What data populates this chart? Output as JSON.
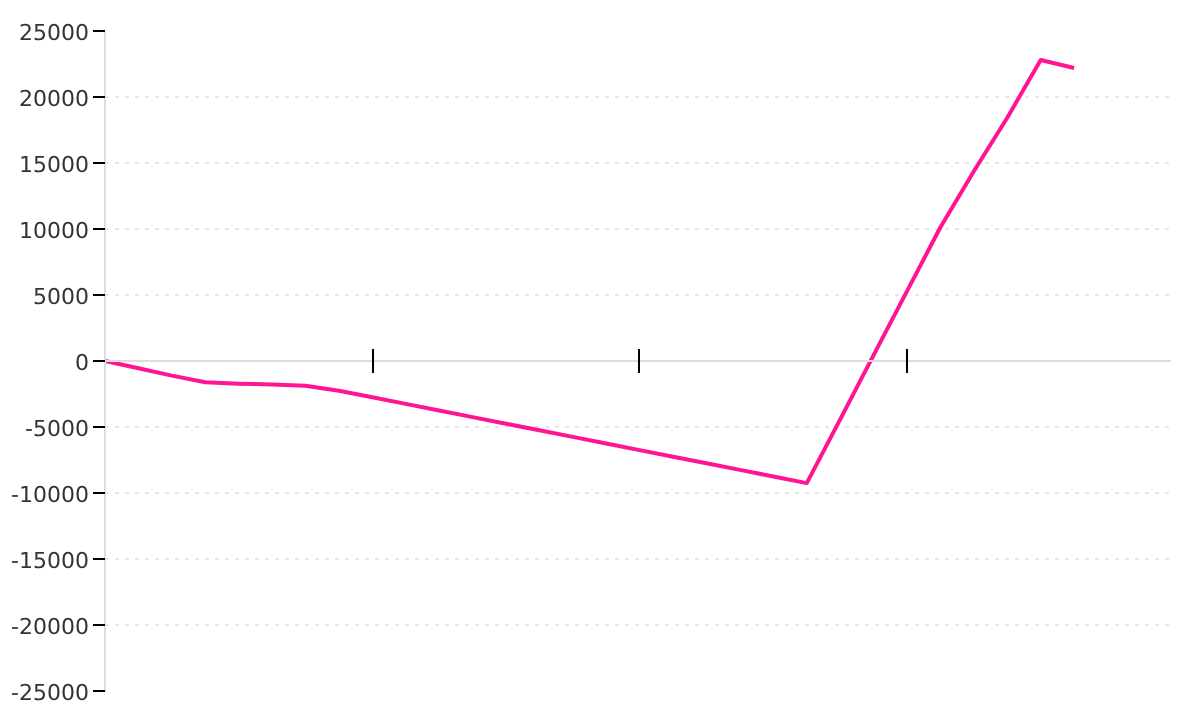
{
  "chart_data": {
    "type": "line",
    "categories": [
      null,
      null,
      null,
      null,
      null,
      null,
      null,
      null,
      null,
      null,
      null,
      null,
      null,
      null,
      null,
      null,
      null,
      null,
      null,
      null,
      null,
      null,
      null,
      null,
      null,
      null,
      null,
      null,
      null,
      null
    ],
    "series": [
      {
        "color": "#ff1493",
        "values": [
          0,
          -550,
          -1110,
          -1610,
          -1720,
          -1780,
          -1870,
          -2250,
          -2750,
          -3250,
          -3750,
          -4250,
          -4750,
          -5250,
          -5750,
          -6250,
          -6750,
          -7250,
          -7750,
          -8250,
          -8750,
          -9250,
          -4420,
          440,
          5290,
          10130,
          14380,
          18430,
          22800,
          22200
        ]
      }
    ],
    "ylim": [
      -25000,
      25000
    ],
    "yticks": [
      -25000,
      -20000,
      -15000,
      -10000,
      -5000,
      0,
      5000,
      10000,
      15000,
      20000,
      25000
    ],
    "grid": "y",
    "tick_labels": "y",
    "marker": "none",
    "line_style": "solid"
  }
}
